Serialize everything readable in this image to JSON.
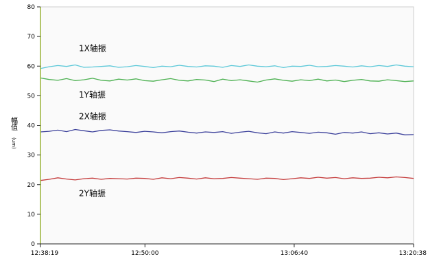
{
  "chart_data": {
    "type": "line",
    "title": "",
    "xlabel": "",
    "ylabel": "幅值",
    "ylabel_unit": "(um)",
    "ylim": [
      0,
      80
    ],
    "yticks": [
      0,
      10,
      20,
      30,
      40,
      50,
      60,
      70,
      80
    ],
    "x_tick_labels": [
      "12:38:19",
      "12:50:00",
      "13:06:40",
      "13:20:38"
    ],
    "x_tick_positions": [
      0,
      0.28,
      0.68,
      1.0
    ],
    "grid": false,
    "legend": "none",
    "series": [
      {
        "name": "1X轴振",
        "color": "#5bc8d8",
        "values": [
          59.2,
          59.8,
          60.2,
          59.9,
          60.4,
          59.6,
          59.7,
          59.9,
          60.1,
          59.6,
          59.8,
          60.2,
          59.9,
          59.5,
          60.0,
          59.8,
          60.3,
          59.9,
          59.7,
          60.1,
          60.0,
          59.6,
          60.2,
          59.9,
          60.4,
          60.0,
          59.8,
          60.1,
          59.5,
          60.0,
          59.9,
          60.3,
          59.8,
          59.9,
          60.2,
          60.0,
          59.7,
          60.1,
          59.8,
          60.2,
          59.9,
          60.4,
          60.0,
          59.8
        ]
      },
      {
        "name": "1Y轴振",
        "color": "#4bb050",
        "values": [
          56.0,
          55.5,
          55.2,
          55.8,
          55.1,
          55.4,
          55.9,
          55.2,
          55.0,
          55.6,
          55.3,
          55.7,
          55.1,
          54.9,
          55.4,
          55.8,
          55.2,
          55.0,
          55.5,
          55.3,
          54.8,
          55.6,
          55.1,
          55.4,
          55.0,
          54.6,
          55.3,
          55.7,
          55.2,
          54.9,
          55.4,
          55.1,
          55.6,
          55.0,
          55.3,
          54.8,
          55.2,
          55.5,
          55.0,
          54.9,
          55.4,
          55.1,
          54.8,
          55.0
        ]
      },
      {
        "name": "2X轴振",
        "color": "#3a3f9a",
        "values": [
          37.8,
          38.0,
          38.4,
          37.9,
          38.6,
          38.2,
          37.8,
          38.3,
          38.5,
          38.1,
          37.9,
          37.6,
          38.0,
          37.8,
          37.5,
          37.9,
          38.1,
          37.7,
          37.4,
          37.8,
          37.6,
          37.9,
          37.3,
          37.7,
          38.0,
          37.5,
          37.2,
          37.8,
          37.4,
          37.9,
          37.6,
          37.3,
          37.7,
          37.5,
          37.0,
          37.6,
          37.4,
          37.8,
          37.2,
          37.5,
          37.1,
          37.4,
          36.8,
          36.9
        ]
      },
      {
        "name": "2Y轴振",
        "color": "#c43a3a",
        "values": [
          21.4,
          21.8,
          22.3,
          21.9,
          21.6,
          22.0,
          22.2,
          21.8,
          22.1,
          22.0,
          21.9,
          22.2,
          22.1,
          21.8,
          22.3,
          22.0,
          22.4,
          22.2,
          21.9,
          22.3,
          22.0,
          22.1,
          22.4,
          22.2,
          22.0,
          21.8,
          22.2,
          22.1,
          21.7,
          22.0,
          22.3,
          22.1,
          22.5,
          22.2,
          22.4,
          22.0,
          22.3,
          22.1,
          22.2,
          22.5,
          22.3,
          22.6,
          22.4,
          22.1
        ]
      }
    ]
  }
}
